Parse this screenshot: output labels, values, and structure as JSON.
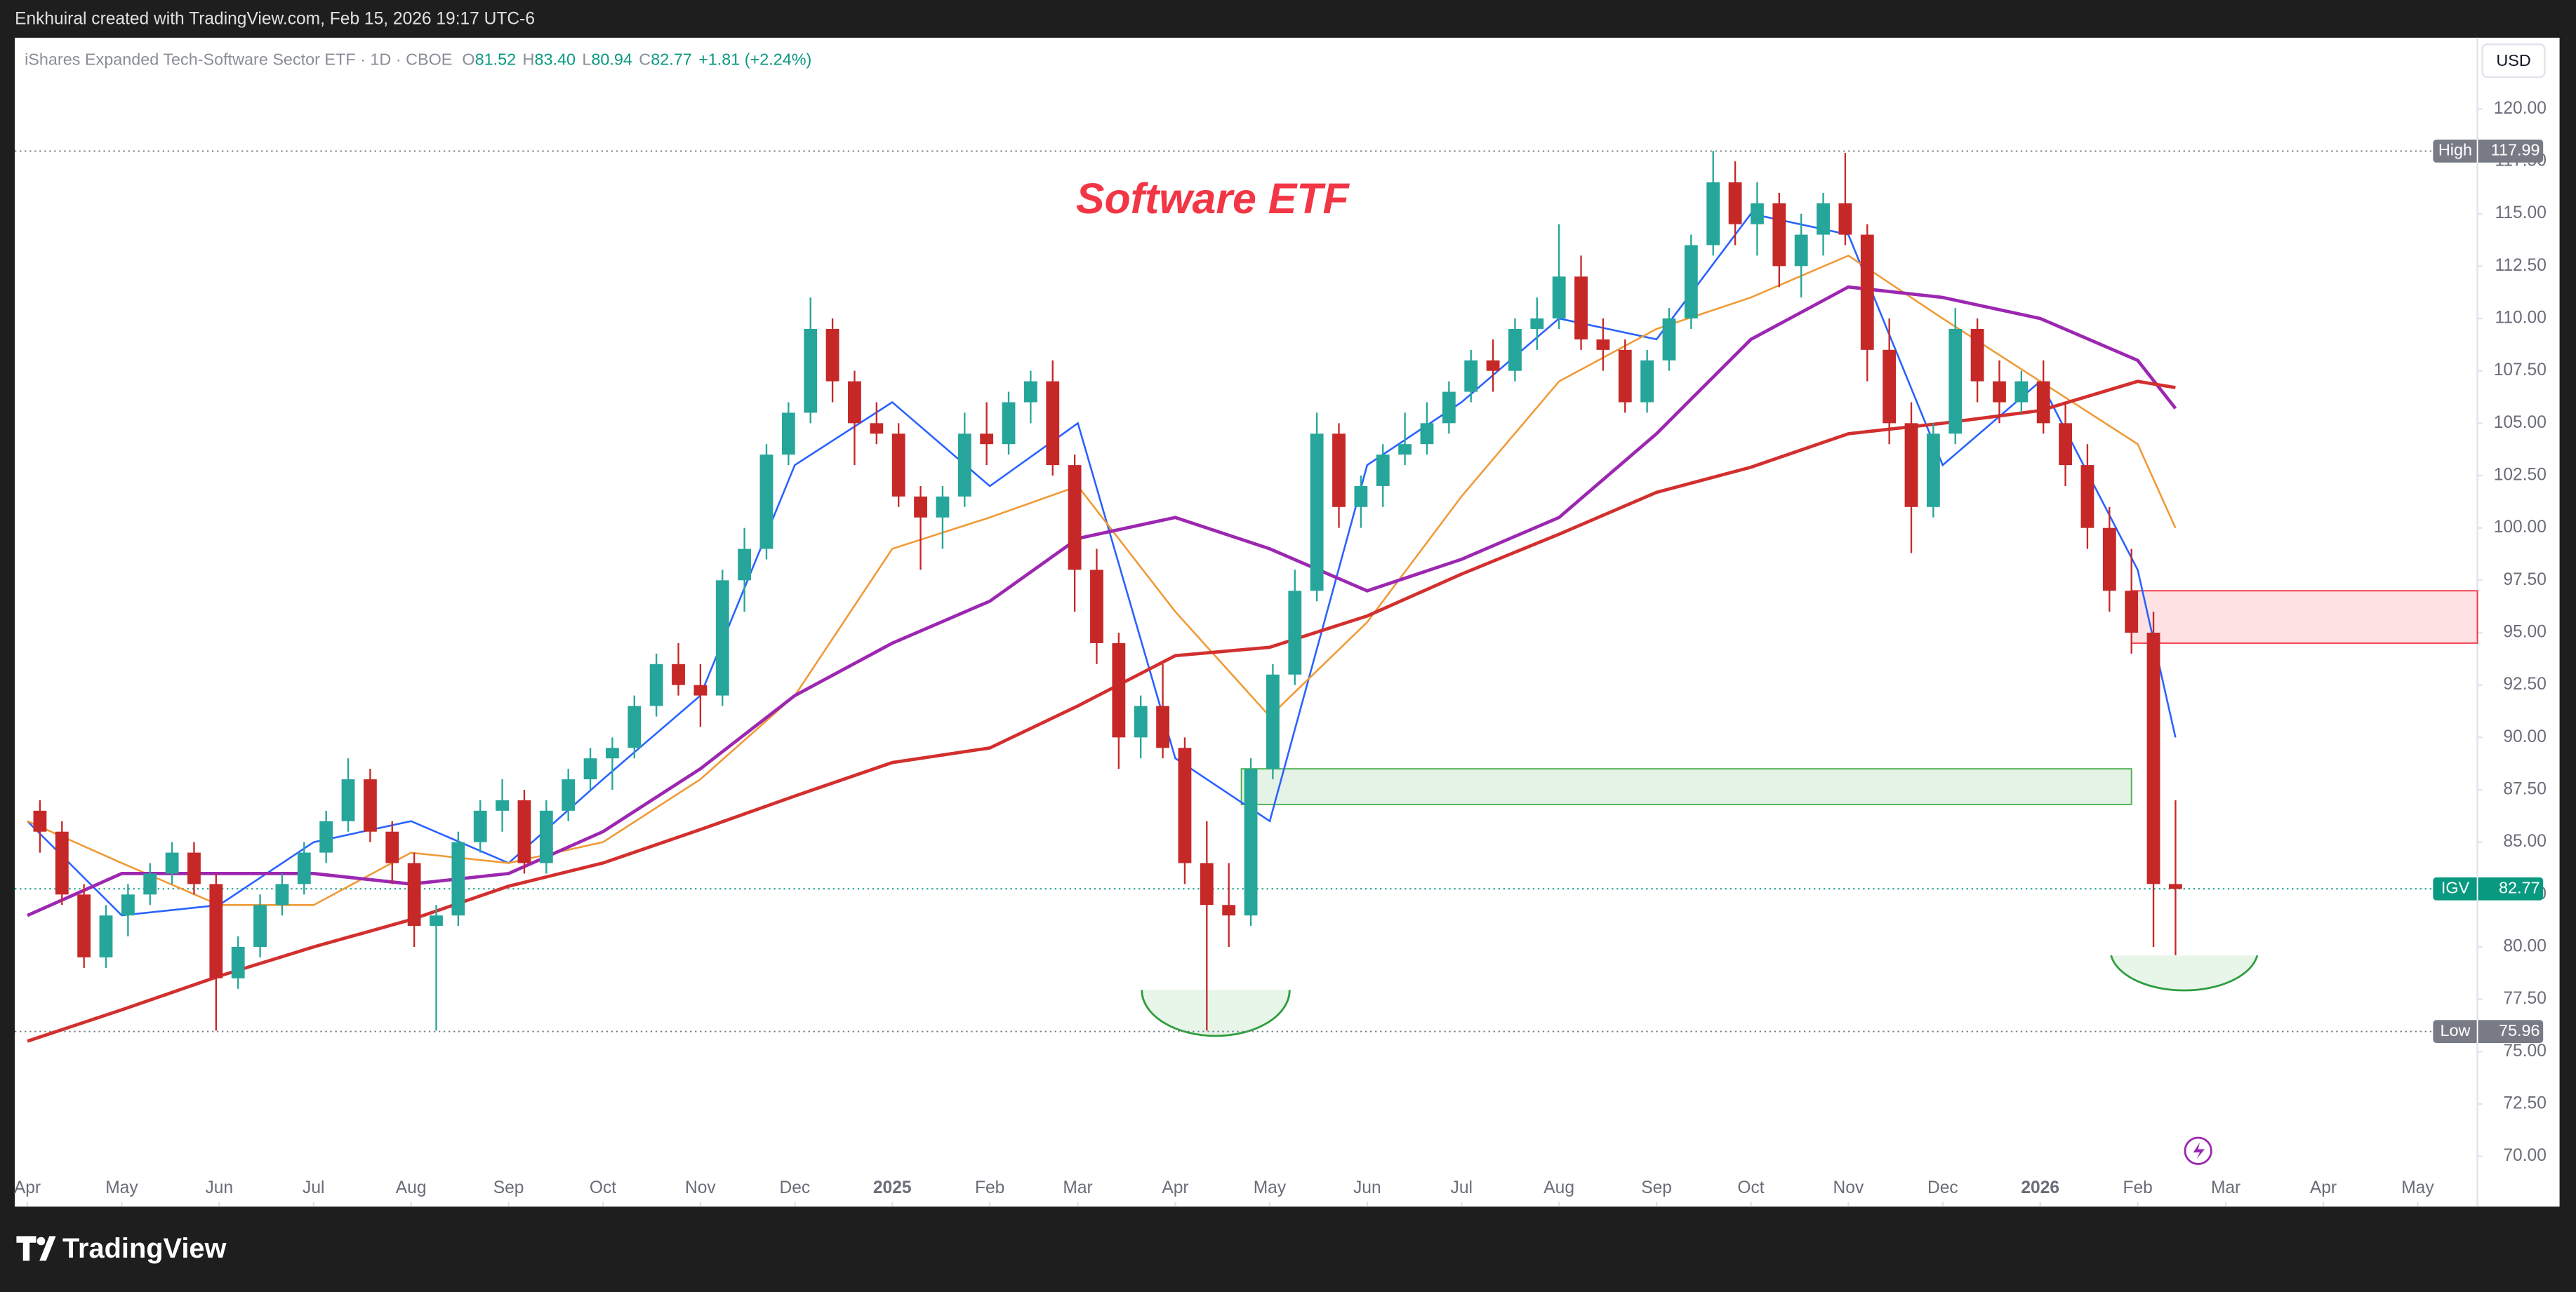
{
  "header": {
    "credit": "Enkhuiral created with TradingView.com, Feb 15, 2026 19:17 UTC-6",
    "symbol": "iShares Expanded Tech-Software Sector ETF · 1D · CBOE",
    "ohlc": [
      {
        "label": "O",
        "value": "81.52"
      },
      {
        "label": "H",
        "value": "83.40"
      },
      {
        "label": "L",
        "value": "80.94"
      },
      {
        "label": "C",
        "value": "82.77"
      }
    ],
    "change": "+1.81 (+2.24%)",
    "currency": "USD"
  },
  "footer": {
    "brand": "TradingView"
  },
  "chart_data": {
    "type": "candlestick",
    "title": "Software ETF",
    "up_color": "#26a69a",
    "down_color": "#c62828",
    "x": [
      "2024-04-05",
      "2024-04-12",
      "2024-04-19",
      "2024-04-26",
      "2024-05-03",
      "2024-05-10",
      "2024-05-17",
      "2024-05-24",
      "2024-05-31",
      "2024-06-07",
      "2024-06-14",
      "2024-06-21",
      "2024-06-28",
      "2024-07-05",
      "2024-07-12",
      "2024-07-19",
      "2024-07-26",
      "2024-08-02",
      "2024-08-09",
      "2024-08-16",
      "2024-08-23",
      "2024-08-30",
      "2024-09-06",
      "2024-09-13",
      "2024-09-20",
      "2024-09-27",
      "2024-10-04",
      "2024-10-11",
      "2024-10-18",
      "2024-10-25",
      "2024-11-01",
      "2024-11-08",
      "2024-11-15",
      "2024-11-22",
      "2024-11-29",
      "2024-12-06",
      "2024-12-13",
      "2024-12-20",
      "2024-12-27",
      "2025-01-03",
      "2025-01-10",
      "2025-01-17",
      "2025-01-24",
      "2025-01-31",
      "2025-02-07",
      "2025-02-14",
      "2025-02-21",
      "2025-02-28",
      "2025-03-07",
      "2025-03-14",
      "2025-03-21",
      "2025-03-28",
      "2025-04-04",
      "2025-04-11",
      "2025-04-18",
      "2025-04-25",
      "2025-05-02",
      "2025-05-09",
      "2025-05-16",
      "2025-05-23",
      "2025-05-30",
      "2025-06-06",
      "2025-06-13",
      "2025-06-20",
      "2025-06-27",
      "2025-07-04",
      "2025-07-11",
      "2025-07-18",
      "2025-07-25",
      "2025-08-01",
      "2025-08-08",
      "2025-08-15",
      "2025-08-22",
      "2025-08-29",
      "2025-09-05",
      "2025-09-12",
      "2025-09-19",
      "2025-09-26",
      "2025-10-03",
      "2025-10-10",
      "2025-10-17",
      "2025-10-24",
      "2025-10-31",
      "2025-11-07",
      "2025-11-14",
      "2025-11-21",
      "2025-11-28",
      "2025-12-05",
      "2025-12-12",
      "2025-12-19",
      "2025-12-26",
      "2026-01-02",
      "2026-01-09",
      "2026-01-16",
      "2026-01-23",
      "2026-01-30",
      "2026-02-06",
      "2026-02-13"
    ],
    "open": [
      86.5,
      85.5,
      82.5,
      79.5,
      81.5,
      82.5,
      83.5,
      84.5,
      83,
      78.5,
      80,
      82,
      83,
      84.5,
      86,
      88,
      85.5,
      84,
      81,
      81.5,
      85,
      86.5,
      87,
      84,
      86.5,
      88,
      89,
      89.5,
      91.5,
      93.5,
      92.5,
      92,
      97.5,
      99,
      103.5,
      105.5,
      109.5,
      107,
      105,
      104.5,
      101.5,
      100.5,
      101.5,
      104.5,
      104,
      106,
      107,
      103,
      98,
      94.5,
      90,
      91.5,
      89.5,
      84,
      82,
      81.5,
      88.5,
      93,
      97,
      104.5,
      101,
      102,
      103.5,
      104,
      105,
      106.5,
      108,
      107.5,
      109.5,
      110,
      112,
      109,
      108.5,
      106,
      108,
      110,
      113.5,
      116.5,
      114.5,
      115.5,
      112.5,
      114,
      115.5,
      114,
      108.5,
      105,
      101,
      104.5,
      109.5,
      107,
      106,
      107,
      105,
      103,
      100,
      97,
      95,
      83
    ],
    "high": [
      87,
      86,
      83,
      82,
      83,
      84,
      85,
      85,
      83.5,
      80.5,
      82.5,
      83.5,
      85,
      86.5,
      89,
      88.5,
      86,
      84.5,
      82,
      85.5,
      87,
      88,
      87.5,
      87,
      88.5,
      89.5,
      90,
      92,
      94,
      94.5,
      93.5,
      98,
      100,
      104,
      106,
      111,
      110,
      107.5,
      106,
      105,
      102,
      102,
      105.5,
      106,
      106.5,
      107.5,
      108,
      103.5,
      99,
      95,
      92,
      93.5,
      90,
      86,
      84,
      89,
      93.5,
      98,
      105.5,
      105,
      102.5,
      104,
      105.5,
      106,
      107,
      108.5,
      109,
      110,
      111,
      114.5,
      113,
      110,
      109,
      108.5,
      110.5,
      114,
      118,
      117.5,
      116.5,
      116,
      115,
      116,
      117.9,
      114.5,
      110,
      106,
      105,
      110.5,
      110,
      108,
      107.5,
      108,
      106,
      104,
      101,
      99,
      96,
      87
    ],
    "low": [
      84.5,
      82,
      79,
      79,
      80.5,
      82,
      83,
      82.5,
      76,
      78,
      79.5,
      81.5,
      82.5,
      84,
      85.5,
      85,
      83,
      80,
      76,
      81,
      84.5,
      85.5,
      83.5,
      83.5,
      86,
      87.5,
      87.5,
      89,
      91,
      92,
      90.5,
      91.5,
      96,
      98.5,
      103,
      105,
      106,
      103,
      104,
      101,
      98,
      99,
      101,
      103,
      103.5,
      105,
      102.5,
      96,
      93.5,
      88.5,
      89,
      89,
      83,
      76,
      80,
      81,
      88,
      92.5,
      96.5,
      100,
      100,
      101,
      103,
      103.5,
      104.5,
      106,
      106.5,
      107,
      108.5,
      109.5,
      108.5,
      107.5,
      105.5,
      105.5,
      107.5,
      109.5,
      113,
      113.5,
      113,
      111.5,
      111,
      113,
      113.5,
      107,
      104,
      98.8,
      100.5,
      104,
      106,
      105,
      105.5,
      104.5,
      102,
      99,
      96,
      94,
      80,
      79.6
    ],
    "close": [
      85.5,
      82.5,
      79.5,
      81.5,
      82.5,
      83.5,
      84.5,
      83,
      78.5,
      80,
      82,
      83,
      84.5,
      86,
      88,
      85.5,
      84,
      81,
      81.5,
      85,
      86.5,
      87,
      84,
      86.5,
      88,
      89,
      89.5,
      91.5,
      93.5,
      92.5,
      92,
      97.5,
      99,
      103.5,
      105.5,
      109.5,
      107,
      105,
      104.5,
      101.5,
      100.5,
      101.5,
      104.5,
      104,
      106,
      107,
      103,
      98,
      94.5,
      90,
      91.5,
      89.5,
      84,
      82,
      81.5,
      88.5,
      93,
      97,
      104.5,
      101,
      102,
      103.5,
      104,
      105,
      106.5,
      108,
      107.5,
      109.5,
      110,
      112,
      109,
      108.5,
      106,
      108,
      110,
      113.5,
      116.5,
      114.5,
      115.5,
      112.5,
      114,
      115.5,
      114,
      108.5,
      105,
      101,
      104.5,
      109.5,
      107,
      106,
      107,
      105,
      103,
      100,
      97,
      95,
      83,
      82.77
    ],
    "line_x": [
      "2024-04-01",
      "2024-05-01",
      "2024-06-01",
      "2024-07-01",
      "2024-08-01",
      "2024-09-01",
      "2024-10-01",
      "2024-11-01",
      "2024-12-01",
      "2025-01-01",
      "2025-02-01",
      "2025-03-01",
      "2025-04-01",
      "2025-05-01",
      "2025-06-01",
      "2025-07-01",
      "2025-08-01",
      "2025-09-01",
      "2025-10-01",
      "2025-11-01",
      "2025-12-01",
      "2026-01-01",
      "2026-02-01",
      "2026-02-13"
    ],
    "lines": [
      {
        "color": "#2962ff",
        "values": [
          86,
          81.5,
          82,
          85,
          86,
          84,
          88,
          92,
          103,
          106,
          102,
          105,
          89,
          86,
          103,
          106,
          110,
          109,
          115,
          114,
          103,
          107,
          98,
          90
        ]
      },
      {
        "color": "#f09a36",
        "values": [
          86,
          84,
          82,
          82,
          84.5,
          84,
          85,
          88,
          92,
          99,
          100.5,
          102,
          96,
          91,
          95.5,
          101.5,
          107,
          109.5,
          111,
          113,
          110,
          107,
          104,
          100
        ]
      },
      {
        "color": "#9c27b0",
        "values": [
          81.5,
          83.5,
          83.5,
          83.5,
          83,
          83.5,
          85.5,
          88.5,
          92,
          94.5,
          96.5,
          99.5,
          100.5,
          99,
          97,
          98.5,
          100.5,
          104.5,
          109,
          111.5,
          111,
          110,
          108,
          105.7
        ]
      },
      {
        "color": "#d32f2f",
        "values": [
          75.5,
          77,
          78.6,
          80,
          81.3,
          82.9,
          84,
          85.6,
          87.2,
          88.8,
          89.5,
          91.5,
          93.9,
          94.3,
          95.8,
          97.8,
          99.7,
          101.7,
          102.9,
          104.5,
          105,
          105.6,
          107,
          106.7
        ]
      }
    ],
    "zones": [
      {
        "x": [
          "2025-04-22",
          "2026-01-30"
        ],
        "y": [
          86.8,
          88.5
        ],
        "color": "#4caf50"
      },
      {
        "x": [
          "2026-01-30",
          "2026-05-20"
        ],
        "y": [
          94.5,
          97
        ],
        "color": "#f23645"
      }
    ],
    "levels": [
      {
        "label": "High",
        "value": 117.99,
        "color": "#787b86"
      },
      {
        "label": "IGV",
        "value": 82.77,
        "color": "#089981"
      },
      {
        "label": "Low",
        "value": 75.96,
        "color": "#787b86"
      }
    ],
    "xlim": [
      "2024-03-28",
      "2026-05-20"
    ],
    "ylim": [
      67.6,
      123.4
    ],
    "yticks": [
      {
        "value": 70,
        "label": "70.00"
      },
      {
        "value": 72.5,
        "label": "72.50"
      },
      {
        "value": 75,
        "label": "75.00"
      },
      {
        "value": 77.5,
        "label": "77.50"
      },
      {
        "value": 80,
        "label": "80.00"
      },
      {
        "value": 82.5,
        "label": "82.50"
      },
      {
        "value": 85,
        "label": "85.00"
      },
      {
        "value": 87.5,
        "label": "87.50"
      },
      {
        "value": 90,
        "label": "90.00"
      },
      {
        "value": 92.5,
        "label": "92.50"
      },
      {
        "value": 95,
        "label": "95.00"
      },
      {
        "value": 97.5,
        "label": "97.50"
      },
      {
        "value": 100,
        "label": "100.00"
      },
      {
        "value": 102.5,
        "label": "102.50"
      },
      {
        "value": 105,
        "label": "105.00"
      },
      {
        "value": 107.5,
        "label": "107.50"
      },
      {
        "value": 110,
        "label": "110.00"
      },
      {
        "value": 112.5,
        "label": "112.50"
      },
      {
        "value": 115,
        "label": "115.00"
      },
      {
        "value": 117.5,
        "label": "117.50"
      },
      {
        "value": 120,
        "label": "120.00"
      }
    ],
    "xticks": [
      {
        "value": "2024-04-01",
        "label": "Apr"
      },
      {
        "value": "2024-05-01",
        "label": "May"
      },
      {
        "value": "2024-06-01",
        "label": "Jun"
      },
      {
        "value": "2024-07-01",
        "label": "Jul"
      },
      {
        "value": "2024-08-01",
        "label": "Aug"
      },
      {
        "value": "2024-09-01",
        "label": "Sep"
      },
      {
        "value": "2024-10-01",
        "label": "Oct"
      },
      {
        "value": "2024-11-01",
        "label": "Nov"
      },
      {
        "value": "2024-12-01",
        "label": "Dec"
      },
      {
        "value": "2025-01-01",
        "label": "2025"
      },
      {
        "value": "2025-02-01",
        "label": "Feb"
      },
      {
        "value": "2025-03-01",
        "label": "Mar"
      },
      {
        "value": "2025-04-01",
        "label": "Apr"
      },
      {
        "value": "2025-05-01",
        "label": "May"
      },
      {
        "value": "2025-06-01",
        "label": "Jun"
      },
      {
        "value": "2025-07-01",
        "label": "Jul"
      },
      {
        "value": "2025-08-01",
        "label": "Aug"
      },
      {
        "value": "2025-09-01",
        "label": "Sep"
      },
      {
        "value": "2025-10-01",
        "label": "Oct"
      },
      {
        "value": "2025-11-01",
        "label": "Nov"
      },
      {
        "value": "2025-12-01",
        "label": "Dec"
      },
      {
        "value": "2026-01-01",
        "label": "2026"
      },
      {
        "value": "2026-02-01",
        "label": "Feb"
      },
      {
        "value": "2026-03-01",
        "label": "Mar"
      },
      {
        "value": "2026-04-01",
        "label": "Apr"
      },
      {
        "value": "2026-05-01",
        "label": "May"
      }
    ]
  }
}
